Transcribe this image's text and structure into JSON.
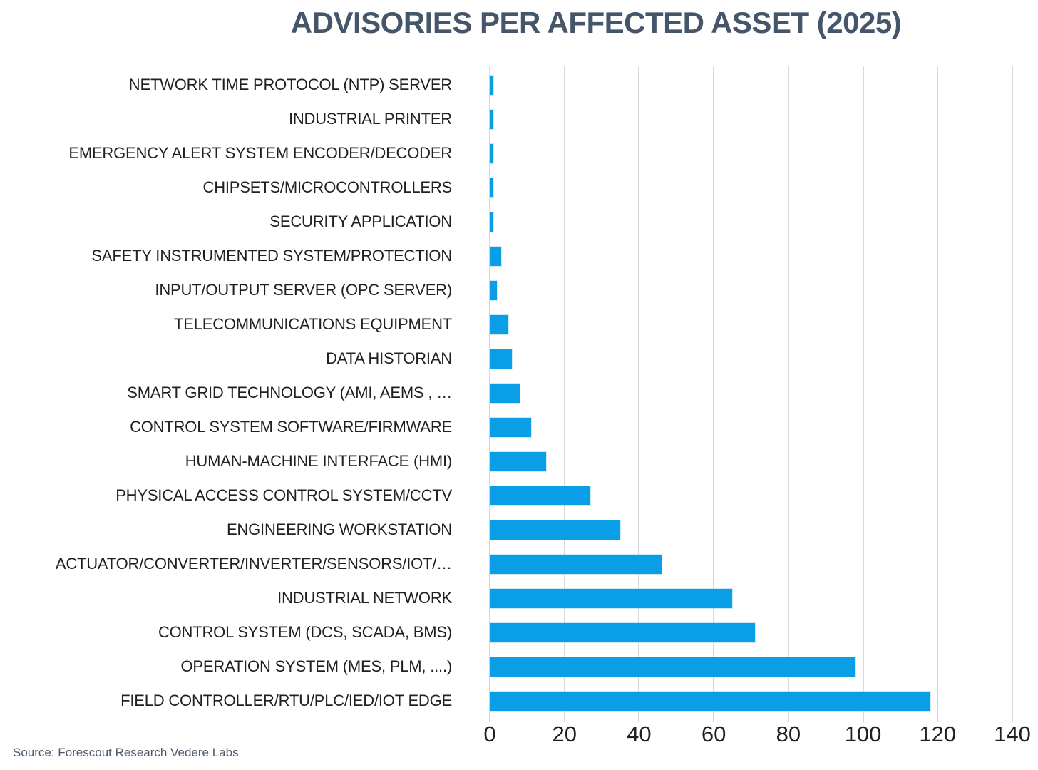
{
  "title": "ADVISORIES PER AFFECTED ASSET (2025)",
  "source_note": "Source: Forescout Research Vedere Labs",
  "colors": {
    "bar": "#0a9ee7",
    "title": "#45566a",
    "axis_text": "#231f20",
    "gridline": "#d8d8d8",
    "source_text": "#4a596b"
  },
  "chart_data": {
    "type": "bar",
    "orientation": "horizontal",
    "title": "ADVISORIES PER AFFECTED ASSET (2025)",
    "categories": [
      "NETWORK TIME PROTOCOL (NTP) SERVER",
      "INDUSTRIAL PRINTER",
      "EMERGENCY ALERT SYSTEM ENCODER/DECODER",
      "CHIPSETS/MICROCONTROLLERS",
      "SECURITY APPLICATION",
      "SAFETY INSTRUMENTED SYSTEM/PROTECTION",
      "INPUT/OUTPUT SERVER (OPC SERVER)",
      "TELECOMMUNICATIONS EQUIPMENT",
      "DATA HISTORIAN",
      "SMART GRID TECHNOLOGY (AMI, AEMS , …",
      "CONTROL SYSTEM SOFTWARE/FIRMWARE",
      "HUMAN-MACHINE INTERFACE (HMI)",
      "PHYSICAL ACCESS CONTROL SYSTEM/CCTV",
      "ENGINEERING WORKSTATION",
      "ACTUATOR/CONVERTER/INVERTER/SENSORS/IOT/…",
      "INDUSTRIAL NETWORK",
      "CONTROL SYSTEM (DCS, SCADA, BMS)",
      "OPERATION SYSTEM (MES, PLM, ....)",
      "FIELD CONTROLLER/RTU/PLC/IED/IOT EDGE"
    ],
    "values": [
      1,
      1,
      1,
      1,
      1,
      3,
      2,
      5,
      6,
      8,
      11,
      15,
      27,
      35,
      46,
      65,
      71,
      98,
      118
    ],
    "xlabel": "",
    "ylabel": "",
    "xlim": [
      0,
      140
    ],
    "xticks": [
      0,
      20,
      40,
      60,
      80,
      100,
      120,
      140
    ],
    "grid": "vertical",
    "legend": "none",
    "bar_color": "#0a9ee7"
  }
}
